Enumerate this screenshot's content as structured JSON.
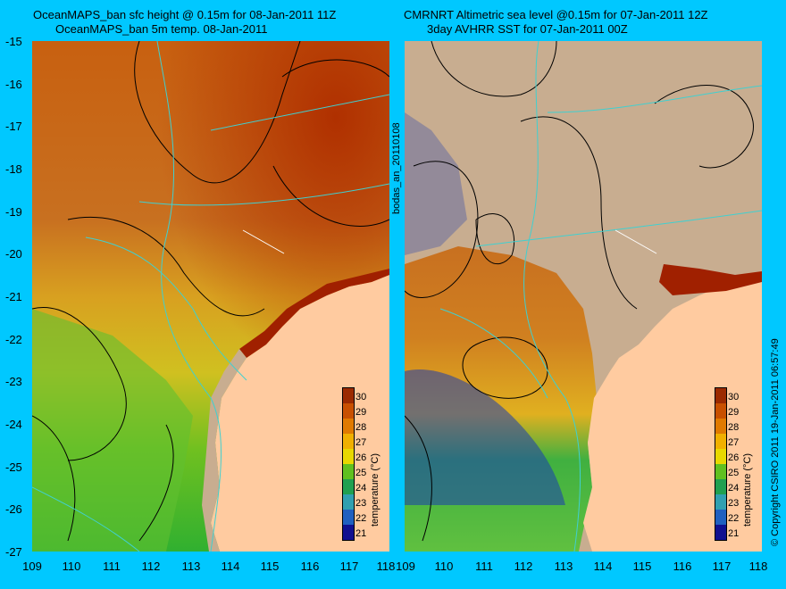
{
  "left_panel": {
    "title_line1": "OceanMAPS_ban sfc height @ 0.15m for 08-Jan-2011 11Z",
    "title_line2": "OceanMAPS_ban 5m temp. 08-Jan-2011"
  },
  "right_panel": {
    "title_line1": "CMRNRT Altimetric sea level  @0.15m  for 07-Jan-2011 12Z",
    "title_line2": "3day AVHRR SST for 07-Jan-2011 00Z"
  },
  "side_label_middle": "bodas_an_20110108",
  "side_label_right": "© Copyright CSIRO 2011   19-Jan-2011 06:57:49",
  "latitude_ticks": [
    "-15",
    "-16",
    "-17",
    "-18",
    "-19",
    "-20",
    "-21",
    "-22",
    "-23",
    "-24",
    "-25",
    "-26",
    "-27"
  ],
  "longitude_ticks": [
    "109",
    "110",
    "111",
    "112",
    "113",
    "114",
    "115",
    "116",
    "117",
    "118"
  ],
  "colorbar": {
    "title": "temperature (°C)",
    "ticks": [
      "30",
      "29",
      "28",
      "27",
      "26",
      "25",
      "24",
      "23",
      "22",
      "21"
    ],
    "colors": [
      "#9b2a00",
      "#c85000",
      "#e07a00",
      "#f0b000",
      "#e8d800",
      "#60c020",
      "#20a050",
      "#30a0b0",
      "#2060c0",
      "#101090"
    ]
  },
  "colors": {
    "background": "#00c8ff",
    "land": "#ffcba0",
    "no_data": "#c8ad90",
    "contour": "#000000",
    "bathymetry": "#40d0d0"
  }
}
